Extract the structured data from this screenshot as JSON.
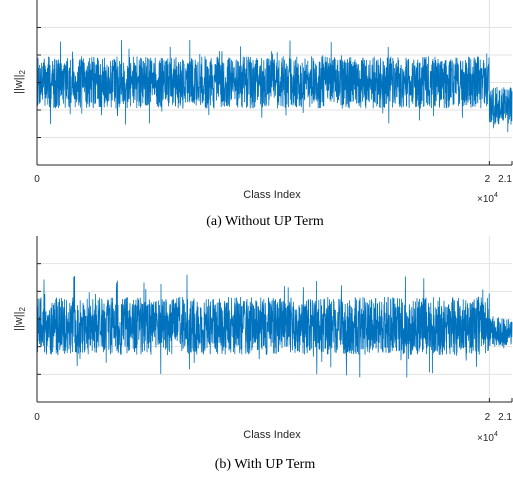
{
  "colors": {
    "series": "#0072BD",
    "grid": "#e3e3e3",
    "axis": "#262626"
  },
  "chart_data": [
    {
      "type": "line",
      "caption": "(a) Without UP Term",
      "xlabel": "Class Index",
      "ylabel": "||w||",
      "ylabel_sub": "2",
      "x_multiplier": "×10",
      "x_multiplier_exp": "4",
      "xlim": [
        0,
        21000
      ],
      "ylim": [
        0,
        6
      ],
      "x_ticks": [
        {
          "value": 0,
          "label": "0"
        },
        {
          "value": 20000,
          "label": "2"
        },
        {
          "value": 21000,
          "label": "2.1"
        }
      ],
      "y_grid": [
        1,
        2,
        3,
        4,
        5
      ],
      "grid": true,
      "series": [
        {
          "x_range": [
            1,
            21000
          ],
          "segments": [
            {
              "x": [
                0,
                20000
              ],
              "center": 3.0,
              "band": 0.95,
              "spike": 1.55
            },
            {
              "x": [
                20000,
                21000
              ],
              "center": 2.15,
              "band": 0.7,
              "spike": 1.0
            }
          ]
        }
      ]
    },
    {
      "type": "line",
      "caption": "(b) With UP Term",
      "xlabel": "Class Index",
      "ylabel": "||w||",
      "ylabel_sub": "2",
      "x_multiplier": "×10",
      "x_multiplier_exp": "4",
      "xlim": [
        0,
        21000
      ],
      "ylim": [
        0,
        6
      ],
      "x_ticks": [
        {
          "value": 0,
          "label": "0"
        },
        {
          "value": 20000,
          "label": "2"
        },
        {
          "value": 21000,
          "label": "2.1"
        }
      ],
      "y_grid": [
        1,
        2,
        3,
        4,
        5
      ],
      "grid": true,
      "series": [
        {
          "x_range": [
            1,
            21000
          ],
          "segments": [
            {
              "x": [
                0,
                20000
              ],
              "center": 2.75,
              "band": 1.05,
              "spike": 1.9
            },
            {
              "x": [
                20000,
                21000
              ],
              "center": 2.55,
              "band": 0.55,
              "spike": 0.75
            }
          ]
        }
      ]
    }
  ]
}
